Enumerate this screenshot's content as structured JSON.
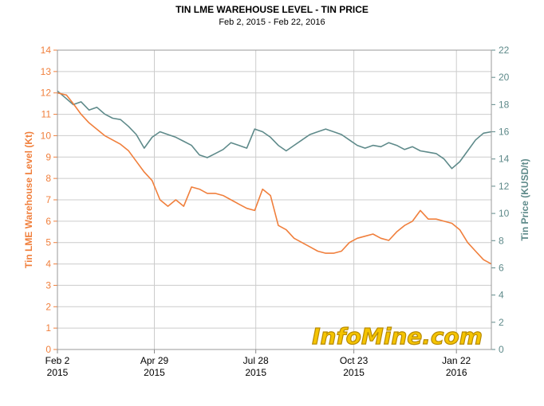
{
  "chart_data": {
    "type": "line",
    "title": "TIN LME WAREHOUSE LEVEL - TIN PRICE",
    "subtitle": "Feb 2, 2015 - Feb 22, 2016",
    "watermark": "InfoMine.com",
    "x_ticks": [
      {
        "date": "2015-02-02",
        "line1": "Feb 2",
        "line2": "2015"
      },
      {
        "date": "2015-04-29",
        "line1": "Apr 29",
        "line2": "2015"
      },
      {
        "date": "2015-07-28",
        "line1": "Jul 28",
        "line2": "2015"
      },
      {
        "date": "2015-10-23",
        "line1": "Oct 23",
        "line2": "2015"
      },
      {
        "date": "2016-01-22",
        "line1": "Jan 22",
        "line2": "2016"
      }
    ],
    "xlim": [
      "2015-02-02",
      "2016-02-22"
    ],
    "left_axis": {
      "label": "Tin LME Warehouse Level (Kt)",
      "ylim": [
        0,
        14
      ],
      "ticks": [
        0,
        1,
        2,
        3,
        4,
        5,
        6,
        7,
        8,
        9,
        10,
        11,
        12,
        13,
        14
      ],
      "color": "#f07f3c"
    },
    "right_axis": {
      "label": "Tin Price (KUSD/t)",
      "ylim": [
        0,
        22
      ],
      "ticks": [
        0,
        2,
        4,
        6,
        8,
        10,
        12,
        14,
        16,
        18,
        20,
        22
      ],
      "color": "#5e8a8a"
    },
    "grid": true,
    "series": [
      {
        "axis": "left",
        "color": "#f07f3c",
        "x": [
          "2015-02-02",
          "2015-02-10",
          "2015-02-16",
          "2015-02-23",
          "2015-03-02",
          "2015-03-09",
          "2015-03-16",
          "2015-03-23",
          "2015-03-30",
          "2015-04-06",
          "2015-04-13",
          "2015-04-20",
          "2015-04-27",
          "2015-05-04",
          "2015-05-11",
          "2015-05-18",
          "2015-05-25",
          "2015-06-01",
          "2015-06-08",
          "2015-06-15",
          "2015-06-22",
          "2015-06-29",
          "2015-07-06",
          "2015-07-13",
          "2015-07-20",
          "2015-07-27",
          "2015-08-03",
          "2015-08-10",
          "2015-08-17",
          "2015-08-24",
          "2015-08-31",
          "2015-09-07",
          "2015-09-14",
          "2015-09-21",
          "2015-09-28",
          "2015-10-05",
          "2015-10-12",
          "2015-10-19",
          "2015-10-26",
          "2015-11-02",
          "2015-11-09",
          "2015-11-16",
          "2015-11-23",
          "2015-11-30",
          "2015-12-07",
          "2015-12-14",
          "2015-12-21",
          "2015-12-28",
          "2016-01-04",
          "2016-01-11",
          "2016-01-18",
          "2016-01-25",
          "2016-02-01",
          "2016-02-08",
          "2016-02-15",
          "2016-02-22"
        ],
        "values": [
          12.0,
          11.9,
          11.5,
          11.0,
          10.6,
          10.3,
          10.0,
          9.8,
          9.6,
          9.3,
          8.8,
          8.3,
          7.9,
          7.0,
          6.7,
          7.0,
          6.7,
          7.6,
          7.5,
          7.3,
          7.3,
          7.2,
          7.0,
          6.8,
          6.6,
          6.5,
          7.5,
          7.2,
          5.8,
          5.6,
          5.2,
          5.0,
          4.8,
          4.6,
          4.5,
          4.5,
          4.6,
          5.0,
          5.2,
          5.3,
          5.4,
          5.2,
          5.1,
          5.5,
          5.8,
          6.0,
          6.5,
          6.1,
          6.1,
          6.0,
          5.9,
          5.6,
          5.0,
          4.6,
          4.2,
          4.0
        ]
      },
      {
        "axis": "right",
        "color": "#5e8a8a",
        "x": [
          "2015-02-02",
          "2015-02-09",
          "2015-02-16",
          "2015-02-23",
          "2015-03-02",
          "2015-03-09",
          "2015-03-16",
          "2015-03-23",
          "2015-03-30",
          "2015-04-06",
          "2015-04-13",
          "2015-04-20",
          "2015-04-27",
          "2015-05-04",
          "2015-05-11",
          "2015-05-18",
          "2015-05-25",
          "2015-06-01",
          "2015-06-08",
          "2015-06-15",
          "2015-06-22",
          "2015-06-29",
          "2015-07-06",
          "2015-07-13",
          "2015-07-20",
          "2015-07-27",
          "2015-08-03",
          "2015-08-10",
          "2015-08-17",
          "2015-08-24",
          "2015-08-31",
          "2015-09-07",
          "2015-09-14",
          "2015-09-21",
          "2015-09-28",
          "2015-10-05",
          "2015-10-12",
          "2015-10-19",
          "2015-10-26",
          "2015-11-02",
          "2015-11-09",
          "2015-11-16",
          "2015-11-23",
          "2015-11-30",
          "2015-12-07",
          "2015-12-14",
          "2015-12-21",
          "2015-12-28",
          "2016-01-04",
          "2016-01-11",
          "2016-01-18",
          "2016-01-25",
          "2016-02-01",
          "2016-02-08",
          "2016-02-15",
          "2016-02-22"
        ],
        "values": [
          19.0,
          18.5,
          18.0,
          18.2,
          17.6,
          17.8,
          17.3,
          17.0,
          16.9,
          16.4,
          15.8,
          14.8,
          15.6,
          16.0,
          15.8,
          15.6,
          15.3,
          15.0,
          14.3,
          14.1,
          14.4,
          14.7,
          15.2,
          15.0,
          14.8,
          16.2,
          16.0,
          15.6,
          15.0,
          14.6,
          15.0,
          15.4,
          15.8,
          16.0,
          16.2,
          16.0,
          15.8,
          15.4,
          15.0,
          14.8,
          15.0,
          14.9,
          15.2,
          15.0,
          14.7,
          14.9,
          14.6,
          14.5,
          14.4,
          14.0,
          13.3,
          13.8,
          14.6,
          15.4,
          15.9,
          16.0
        ]
      }
    ]
  }
}
